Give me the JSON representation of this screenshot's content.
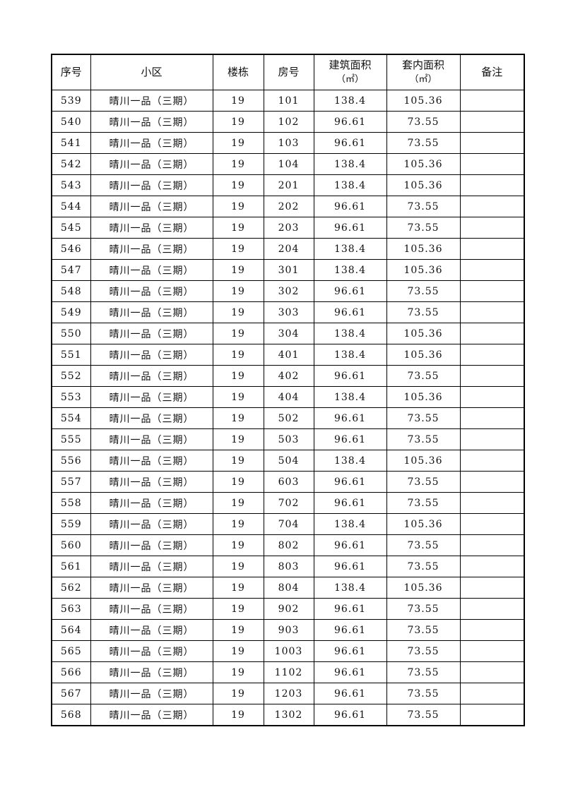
{
  "table": {
    "headers": [
      {
        "label": "序号"
      },
      {
        "label": "小区"
      },
      {
        "label": "楼栋"
      },
      {
        "label": "房号"
      },
      {
        "label": "建筑面积",
        "unit": "（㎡）"
      },
      {
        "label": "套内面积",
        "unit": "（㎡）"
      },
      {
        "label": "备注"
      }
    ],
    "rows": [
      [
        "539",
        "晴川一品（三期）",
        "19",
        "101",
        "138.4",
        "105.36",
        ""
      ],
      [
        "540",
        "晴川一品（三期）",
        "19",
        "102",
        "96.61",
        "73.55",
        ""
      ],
      [
        "541",
        "晴川一品（三期）",
        "19",
        "103",
        "96.61",
        "73.55",
        ""
      ],
      [
        "542",
        "晴川一品（三期）",
        "19",
        "104",
        "138.4",
        "105.36",
        ""
      ],
      [
        "543",
        "晴川一品（三期）",
        "19",
        "201",
        "138.4",
        "105.36",
        ""
      ],
      [
        "544",
        "晴川一品（三期）",
        "19",
        "202",
        "96.61",
        "73.55",
        ""
      ],
      [
        "545",
        "晴川一品（三期）",
        "19",
        "203",
        "96.61",
        "73.55",
        ""
      ],
      [
        "546",
        "晴川一品（三期）",
        "19",
        "204",
        "138.4",
        "105.36",
        ""
      ],
      [
        "547",
        "晴川一品（三期）",
        "19",
        "301",
        "138.4",
        "105.36",
        ""
      ],
      [
        "548",
        "晴川一品（三期）",
        "19",
        "302",
        "96.61",
        "73.55",
        ""
      ],
      [
        "549",
        "晴川一品（三期）",
        "19",
        "303",
        "96.61",
        "73.55",
        ""
      ],
      [
        "550",
        "晴川一品（三期）",
        "19",
        "304",
        "138.4",
        "105.36",
        ""
      ],
      [
        "551",
        "晴川一品（三期）",
        "19",
        "401",
        "138.4",
        "105.36",
        ""
      ],
      [
        "552",
        "晴川一品（三期）",
        "19",
        "402",
        "96.61",
        "73.55",
        ""
      ],
      [
        "553",
        "晴川一品（三期）",
        "19",
        "404",
        "138.4",
        "105.36",
        ""
      ],
      [
        "554",
        "晴川一品（三期）",
        "19",
        "502",
        "96.61",
        "73.55",
        ""
      ],
      [
        "555",
        "晴川一品（三期）",
        "19",
        "503",
        "96.61",
        "73.55",
        ""
      ],
      [
        "556",
        "晴川一品（三期）",
        "19",
        "504",
        "138.4",
        "105.36",
        ""
      ],
      [
        "557",
        "晴川一品（三期）",
        "19",
        "603",
        "96.61",
        "73.55",
        ""
      ],
      [
        "558",
        "晴川一品（三期）",
        "19",
        "702",
        "96.61",
        "73.55",
        ""
      ],
      [
        "559",
        "晴川一品（三期）",
        "19",
        "704",
        "138.4",
        "105.36",
        ""
      ],
      [
        "560",
        "晴川一品（三期）",
        "19",
        "802",
        "96.61",
        "73.55",
        ""
      ],
      [
        "561",
        "晴川一品（三期）",
        "19",
        "803",
        "96.61",
        "73.55",
        ""
      ],
      [
        "562",
        "晴川一品（三期）",
        "19",
        "804",
        "138.4",
        "105.36",
        ""
      ],
      [
        "563",
        "晴川一品（三期）",
        "19",
        "902",
        "96.61",
        "73.55",
        ""
      ],
      [
        "564",
        "晴川一品（三期）",
        "19",
        "903",
        "96.61",
        "73.55",
        ""
      ],
      [
        "565",
        "晴川一品（三期）",
        "19",
        "1003",
        "96.61",
        "73.55",
        ""
      ],
      [
        "566",
        "晴川一品（三期）",
        "19",
        "1102",
        "96.61",
        "73.55",
        ""
      ],
      [
        "567",
        "晴川一品（三期）",
        "19",
        "1203",
        "96.61",
        "73.55",
        ""
      ],
      [
        "568",
        "晴川一品（三期）",
        "19",
        "1302",
        "96.61",
        "73.55",
        ""
      ]
    ]
  }
}
